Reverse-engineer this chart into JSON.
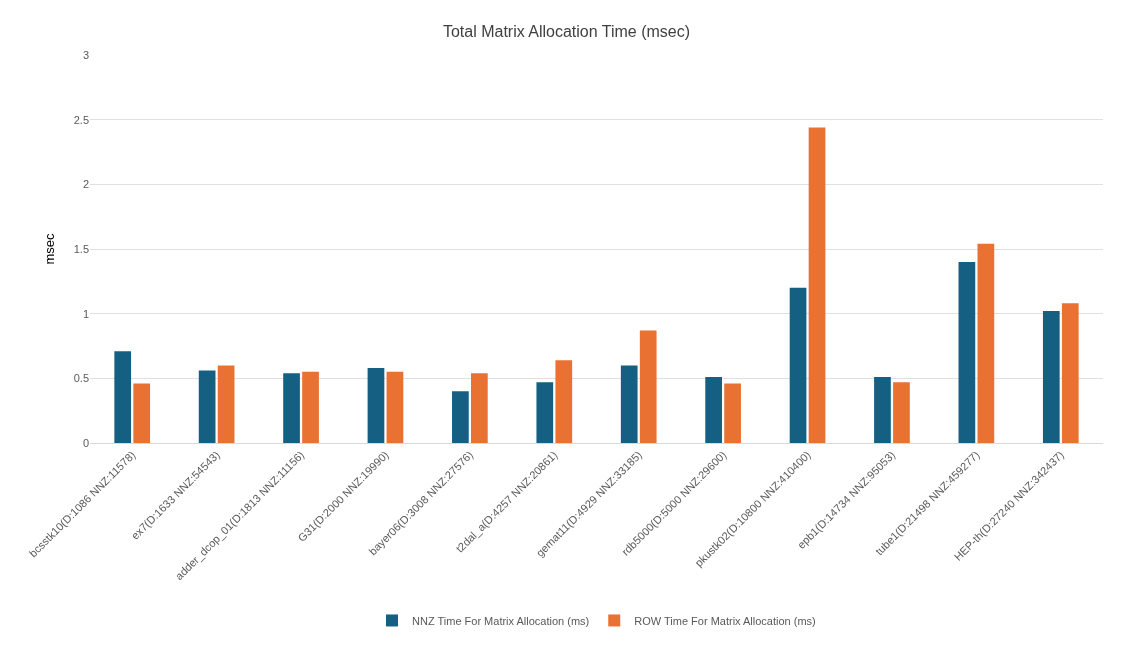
{
  "chart_data": {
    "type": "bar",
    "title": "Total Matrix Allocation Time (msec)",
    "ylabel": "msec",
    "categories": [
      "bcsstk10(D:1086 NNZ:11578)",
      "ex7(D:1633 NNZ:54543)",
      "adder_dcop_01(D:1813 NNZ:11156)",
      "G31(D:2000 NNZ:19990)",
      "bayer06(D:3008 NNZ:27576)",
      "t2dal_a(D:4257 NNZ:20861)",
      "gemat11(D:4929 NNZ:33185)",
      "rdb5000(D:5000 NNZ:29600)",
      "pkustk02(D:10800 NNZ:410400)",
      "epb1(D:14734 NNZ:95053)",
      "tube1(D:21498 NNZ:459277)",
      "HEP-th(D:27240 NNZ:342437)"
    ],
    "series": [
      {
        "name": "NNZ Time For Matrix Allocation (ms)",
        "color": "#156082",
        "values": [
          0.71,
          0.56,
          0.54,
          0.58,
          0.4,
          0.47,
          0.6,
          0.51,
          1.2,
          0.51,
          1.4,
          1.02
        ]
      },
      {
        "name": "ROW Time For Matrix Allocation (ms)",
        "color": "#e97132",
        "values": [
          0.46,
          0.6,
          0.55,
          0.55,
          0.54,
          0.64,
          0.87,
          0.46,
          2.44,
          0.47,
          1.54,
          1.08
        ]
      }
    ],
    "ylim": [
      0,
      3
    ],
    "yticks": [
      0,
      0.5,
      1,
      1.5,
      2,
      2.5,
      3
    ],
    "grid": "y",
    "legend": "bottom"
  }
}
